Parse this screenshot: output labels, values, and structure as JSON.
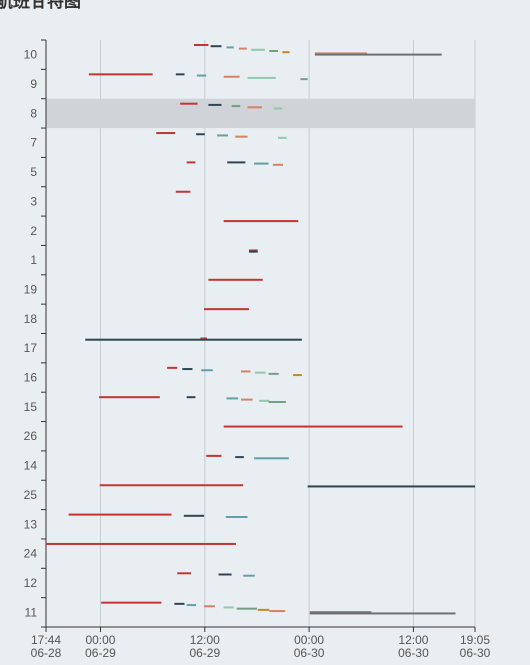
{
  "title": "航班甘特图",
  "chart_data": {
    "type": "gantt",
    "title": "航班甘特图",
    "x_axis": {
      "start": "2023-06-28T17:44",
      "end": "2023-06-30T19:05",
      "ticks": [
        {
          "t": "2023-06-28T17:44",
          "time": "17:44",
          "date": "06-28"
        },
        {
          "t": "2023-06-29T00:00",
          "time": "00:00",
          "date": "06-29"
        },
        {
          "t": "2023-06-29T12:00",
          "time": "12:00",
          "date": "06-29"
        },
        {
          "t": "2023-06-30T00:00",
          "time": "00:00",
          "date": "06-30"
        },
        {
          "t": "2023-06-30T12:00",
          "time": "12:00",
          "date": "06-30"
        },
        {
          "t": "2023-06-30T19:05",
          "time": "19:05",
          "date": "06-30"
        }
      ],
      "grid": true
    },
    "categories": [
      "10",
      "9",
      "8",
      "7",
      "5",
      "3",
      "2",
      "1",
      "19",
      "18",
      "17",
      "16",
      "15",
      "26",
      "14",
      "25",
      "13",
      "24",
      "12",
      "11"
    ],
    "highlighted_category": "8",
    "colors": {
      "red": "#c23531",
      "navy": "#2f4554",
      "teal": "#61a0a8",
      "orange": "#d48265",
      "green": "#91c7ae",
      "olive": "#749f83",
      "gold": "#ca8622",
      "gray": "#6e7074",
      "highlight_band": "#d0d3d7",
      "grid": "#c8cdd2",
      "background": "#e9eef3"
    },
    "bars": [
      {
        "cat": "10",
        "start": "2023-06-29T10:45",
        "end": "2023-06-29T12:25",
        "color": "red",
        "lane": 0
      },
      {
        "cat": "10",
        "start": "2023-06-29T12:40",
        "end": "2023-06-29T13:55",
        "color": "navy",
        "lane": 1
      },
      {
        "cat": "10",
        "start": "2023-06-29T14:30",
        "end": "2023-06-29T15:20",
        "color": "teal",
        "lane": 2
      },
      {
        "cat": "10",
        "start": "2023-06-29T15:55",
        "end": "2023-06-29T16:50",
        "color": "orange",
        "lane": 3
      },
      {
        "cat": "10",
        "start": "2023-06-29T17:20",
        "end": "2023-06-29T18:55",
        "color": "green",
        "lane": 4
      },
      {
        "cat": "10",
        "start": "2023-06-29T19:25",
        "end": "2023-06-29T20:25",
        "color": "olive",
        "lane": 5
      },
      {
        "cat": "10",
        "start": "2023-06-29T20:55",
        "end": "2023-06-29T21:45",
        "color": "gold",
        "lane": 6
      },
      {
        "cat": "10",
        "start": "2023-06-30T00:40",
        "end": "2023-06-30T06:40",
        "color": "orange",
        "lane": 7
      },
      {
        "cat": "10",
        "start": "2023-06-30T00:40",
        "end": "2023-06-30T15:15",
        "color": "gray",
        "lane": 8
      },
      {
        "cat": "9",
        "start": "2023-06-28T22:40",
        "end": "2023-06-29T06:00",
        "color": "red",
        "lane": 0
      },
      {
        "cat": "9",
        "start": "2023-06-29T08:40",
        "end": "2023-06-29T09:40",
        "color": "navy",
        "lane": 0
      },
      {
        "cat": "9",
        "start": "2023-06-29T11:05",
        "end": "2023-06-29T12:10",
        "color": "teal",
        "lane": 1
      },
      {
        "cat": "9",
        "start": "2023-06-29T14:10",
        "end": "2023-06-29T16:00",
        "color": "orange",
        "lane": 2
      },
      {
        "cat": "9",
        "start": "2023-06-29T16:55",
        "end": "2023-06-29T20:10",
        "color": "green",
        "lane": 3
      },
      {
        "cat": "9",
        "start": "2023-06-29T23:00",
        "end": "2023-06-29T23:50",
        "color": "olive",
        "lane": 4
      },
      {
        "cat": "8",
        "start": "2023-06-29T09:10",
        "end": "2023-06-29T11:10",
        "color": "red",
        "lane": 0
      },
      {
        "cat": "8",
        "start": "2023-06-29T12:25",
        "end": "2023-06-29T13:55",
        "color": "navy",
        "lane": 1
      },
      {
        "cat": "8",
        "start": "2023-06-29T15:05",
        "end": "2023-06-29T16:05",
        "color": "olive",
        "lane": 2
      },
      {
        "cat": "8",
        "start": "2023-06-29T16:55",
        "end": "2023-06-29T18:35",
        "color": "orange",
        "lane": 3
      },
      {
        "cat": "8",
        "start": "2023-06-29T19:55",
        "end": "2023-06-29T20:55",
        "color": "green",
        "lane": 4
      },
      {
        "cat": "7",
        "start": "2023-06-29T06:25",
        "end": "2023-06-29T08:35",
        "color": "red",
        "lane": 0
      },
      {
        "cat": "7",
        "start": "2023-06-29T11:00",
        "end": "2023-06-29T12:00",
        "color": "navy",
        "lane": 1
      },
      {
        "cat": "7",
        "start": "2023-06-29T13:25",
        "end": "2023-06-29T14:40",
        "color": "teal",
        "lane": 2
      },
      {
        "cat": "7",
        "start": "2023-06-29T15:30",
        "end": "2023-06-29T16:55",
        "color": "orange",
        "lane": 3
      },
      {
        "cat": "7",
        "start": "2023-06-29T20:25",
        "end": "2023-06-29T21:25",
        "color": "green",
        "lane": 4
      },
      {
        "cat": "5",
        "start": "2023-06-29T09:55",
        "end": "2023-06-29T10:55",
        "color": "red",
        "lane": 0
      },
      {
        "cat": "5",
        "start": "2023-06-29T14:35",
        "end": "2023-06-29T16:40",
        "color": "navy",
        "lane": 0
      },
      {
        "cat": "5",
        "start": "2023-06-29T17:40",
        "end": "2023-06-29T19:20",
        "color": "teal",
        "lane": 1
      },
      {
        "cat": "5",
        "start": "2023-06-29T19:50",
        "end": "2023-06-29T21:00",
        "color": "orange",
        "lane": 2
      },
      {
        "cat": "3",
        "start": "2023-06-29T08:40",
        "end": "2023-06-29T10:20",
        "color": "red",
        "lane": 0
      },
      {
        "cat": "2",
        "start": "2023-06-29T14:10",
        "end": "2023-06-29T22:45",
        "color": "red",
        "lane": 0
      },
      {
        "cat": "1",
        "start": "2023-06-29T17:05",
        "end": "2023-06-29T18:05",
        "color": "red",
        "lane": 0
      },
      {
        "cat": "1",
        "start": "2023-06-29T17:05",
        "end": "2023-06-29T18:05",
        "color": "navy",
        "lane": 1
      },
      {
        "cat": "19",
        "start": "2023-06-29T12:25",
        "end": "2023-06-29T18:40",
        "color": "red",
        "lane": 0
      },
      {
        "cat": "18",
        "start": "2023-06-29T11:55",
        "end": "2023-06-29T17:05",
        "color": "red",
        "lane": 0
      },
      {
        "cat": "17",
        "start": "2023-06-29T11:30",
        "end": "2023-06-29T12:15",
        "color": "red",
        "lane": 0
      },
      {
        "cat": "17",
        "start": "2023-06-28T22:15",
        "end": "2023-06-29T23:10",
        "color": "navy",
        "lane": 1
      },
      {
        "cat": "16",
        "start": "2023-06-29T07:40",
        "end": "2023-06-29T08:50",
        "color": "red",
        "lane": 0
      },
      {
        "cat": "16",
        "start": "2023-06-29T09:25",
        "end": "2023-06-29T10:35",
        "color": "navy",
        "lane": 1
      },
      {
        "cat": "16",
        "start": "2023-06-29T11:35",
        "end": "2023-06-29T12:55",
        "color": "teal",
        "lane": 2
      },
      {
        "cat": "16",
        "start": "2023-06-29T16:10",
        "end": "2023-06-29T17:15",
        "color": "orange",
        "lane": 3
      },
      {
        "cat": "16",
        "start": "2023-06-29T17:45",
        "end": "2023-06-29T19:00",
        "color": "green",
        "lane": 4
      },
      {
        "cat": "16",
        "start": "2023-06-29T19:20",
        "end": "2023-06-29T20:30",
        "color": "olive",
        "lane": 5
      },
      {
        "cat": "16",
        "start": "2023-06-29T22:10",
        "end": "2023-06-29T23:10",
        "color": "gold",
        "lane": 6
      },
      {
        "cat": "15",
        "start": "2023-06-28T23:50",
        "end": "2023-06-29T06:50",
        "color": "red",
        "lane": 0
      },
      {
        "cat": "15",
        "start": "2023-06-29T09:55",
        "end": "2023-06-29T10:55",
        "color": "navy",
        "lane": 0
      },
      {
        "cat": "15",
        "start": "2023-06-29T14:30",
        "end": "2023-06-29T15:50",
        "color": "teal",
        "lane": 1
      },
      {
        "cat": "15",
        "start": "2023-06-29T16:10",
        "end": "2023-06-29T17:30",
        "color": "orange",
        "lane": 2
      },
      {
        "cat": "15",
        "start": "2023-06-29T18:15",
        "end": "2023-06-29T19:25",
        "color": "green",
        "lane": 3
      },
      {
        "cat": "15",
        "start": "2023-06-29T19:20",
        "end": "2023-06-29T21:20",
        "color": "olive",
        "lane": 4
      },
      {
        "cat": "26",
        "start": "2023-06-29T14:10",
        "end": "2023-06-30T10:45",
        "color": "red",
        "lane": 0
      },
      {
        "cat": "14",
        "start": "2023-06-29T12:10",
        "end": "2023-06-29T13:55",
        "color": "red",
        "lane": 0
      },
      {
        "cat": "14",
        "start": "2023-06-29T15:30",
        "end": "2023-06-29T16:30",
        "color": "navy",
        "lane": 1
      },
      {
        "cat": "14",
        "start": "2023-06-29T17:40",
        "end": "2023-06-29T21:40",
        "color": "teal",
        "lane": 2
      },
      {
        "cat": "25",
        "start": "2023-06-28T23:55",
        "end": "2023-06-29T16:25",
        "color": "red",
        "lane": 0
      },
      {
        "cat": "25",
        "start": "2023-06-29T23:50",
        "end": "2023-06-30T19:05",
        "color": "navy",
        "lane": 1
      },
      {
        "cat": "13",
        "start": "2023-06-28T20:20",
        "end": "2023-06-29T08:10",
        "color": "red",
        "lane": 0
      },
      {
        "cat": "13",
        "start": "2023-06-29T09:35",
        "end": "2023-06-29T11:55",
        "color": "navy",
        "lane": 1
      },
      {
        "cat": "13",
        "start": "2023-06-29T14:25",
        "end": "2023-06-29T16:55",
        "color": "teal",
        "lane": 2
      },
      {
        "cat": "24",
        "start": "2023-06-28T17:44",
        "end": "2023-06-29T15:35",
        "color": "red",
        "lane": 0
      },
      {
        "cat": "12",
        "start": "2023-06-29T08:50",
        "end": "2023-06-29T10:25",
        "color": "red",
        "lane": 0
      },
      {
        "cat": "12",
        "start": "2023-06-29T13:35",
        "end": "2023-06-29T15:05",
        "color": "navy",
        "lane": 1
      },
      {
        "cat": "12",
        "start": "2023-06-29T16:25",
        "end": "2023-06-29T17:45",
        "color": "teal",
        "lane": 2
      },
      {
        "cat": "11",
        "start": "2023-06-29T00:05",
        "end": "2023-06-29T07:00",
        "color": "red",
        "lane": 0
      },
      {
        "cat": "11",
        "start": "2023-06-29T08:30",
        "end": "2023-06-29T09:40",
        "color": "navy",
        "lane": 1
      },
      {
        "cat": "11",
        "start": "2023-06-29T09:55",
        "end": "2023-06-29T11:00",
        "color": "teal",
        "lane": 2
      },
      {
        "cat": "11",
        "start": "2023-06-29T11:55",
        "end": "2023-06-29T13:10",
        "color": "orange",
        "lane": 3
      },
      {
        "cat": "11",
        "start": "2023-06-29T14:10",
        "end": "2023-06-29T15:20",
        "color": "green",
        "lane": 4
      },
      {
        "cat": "11",
        "start": "2023-06-29T15:40",
        "end": "2023-06-29T18:00",
        "color": "olive",
        "lane": 5
      },
      {
        "cat": "11",
        "start": "2023-06-29T18:05",
        "end": "2023-06-29T19:25",
        "color": "gold",
        "lane": 6
      },
      {
        "cat": "11",
        "start": "2023-06-29T19:25",
        "end": "2023-06-29T21:15",
        "color": "orange",
        "lane": 7
      },
      {
        "cat": "11",
        "start": "2023-06-30T00:05",
        "end": "2023-06-30T07:10",
        "color": "gray",
        "lane": 8
      },
      {
        "cat": "11",
        "start": "2023-06-30T00:05",
        "end": "2023-06-30T16:50",
        "color": "gray",
        "lane": 9
      }
    ]
  }
}
